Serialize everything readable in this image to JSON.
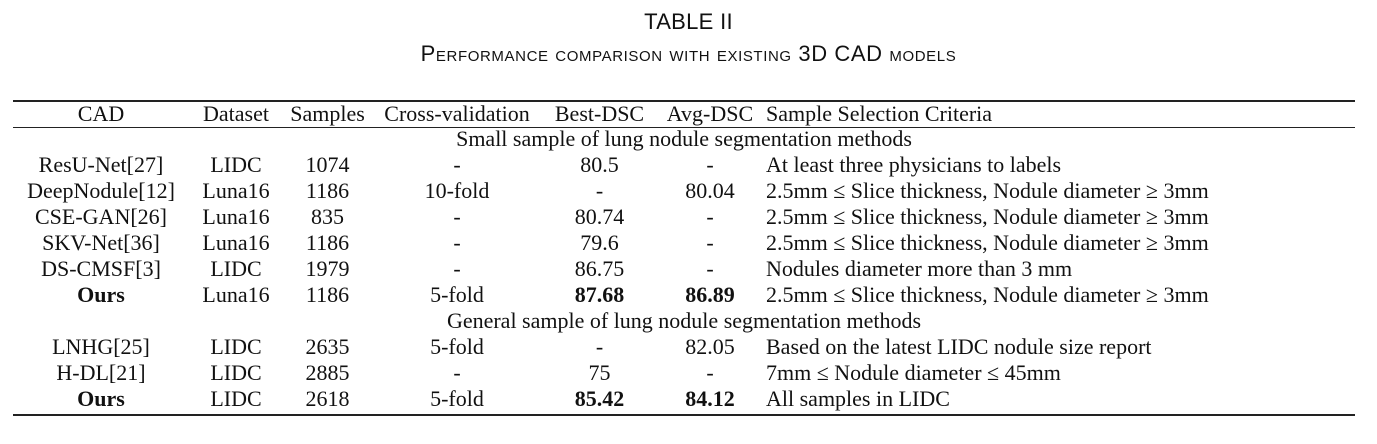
{
  "caption": {
    "label": "TABLE II",
    "title": "Performance comparison with existing 3D CAD models"
  },
  "table": {
    "columns": [
      "CAD",
      "Dataset",
      "Samples",
      "Cross-validation",
      "Best-DSC",
      "Avg-DSC",
      "Sample Selection Criteria"
    ],
    "sections": [
      {
        "title": "Small sample of lung nodule segmentation methods",
        "rows": [
          {
            "cad": "ResU-Net[27]",
            "dataset": "LIDC",
            "samples": "1074",
            "cv": "-",
            "best": "80.5",
            "avg": "-",
            "criteria": "At least three physicians to labels",
            "bold": false
          },
          {
            "cad": "DeepNodule[12]",
            "dataset": "Luna16",
            "samples": "1186",
            "cv": "10-fold",
            "best": "-",
            "avg": "80.04",
            "criteria": "2.5mm ≤ Slice thickness, Nodule diameter ≥ 3mm",
            "bold": false
          },
          {
            "cad": "CSE-GAN[26]",
            "dataset": "Luna16",
            "samples": "835",
            "cv": "-",
            "best": "80.74",
            "avg": "-",
            "criteria": "2.5mm ≤ Slice thickness, Nodule diameter ≥ 3mm",
            "bold": false
          },
          {
            "cad": "SKV-Net[36]",
            "dataset": "Luna16",
            "samples": "1186",
            "cv": "-",
            "best": "79.6",
            "avg": "-",
            "criteria": "2.5mm ≤ Slice thickness, Nodule diameter ≥ 3mm",
            "bold": false
          },
          {
            "cad": "DS-CMSF[3]",
            "dataset": "LIDC",
            "samples": "1979",
            "cv": "-",
            "best": "86.75",
            "avg": "-",
            "criteria": "Nodules diameter more than 3 mm",
            "bold": false
          },
          {
            "cad": "Ours",
            "dataset": "Luna16",
            "samples": "1186",
            "cv": "5-fold",
            "best": "87.68",
            "avg": "86.89",
            "criteria": "2.5mm ≤ Slice thickness, Nodule diameter ≥ 3mm",
            "bold": true
          }
        ]
      },
      {
        "title": "General sample of lung nodule segmentation methods",
        "rows": [
          {
            "cad": "LNHG[25]",
            "dataset": "LIDC",
            "samples": "2635",
            "cv": "5-fold",
            "best": "-",
            "avg": "82.05",
            "criteria": "Based on the latest LIDC nodule size report",
            "bold": false
          },
          {
            "cad": "H-DL[21]",
            "dataset": "LIDC",
            "samples": "2885",
            "cv": "-",
            "best": "75",
            "avg": "-",
            "criteria": "7mm ≤ Nodule diameter ≤ 45mm",
            "bold": false
          },
          {
            "cad": "Ours",
            "dataset": "LIDC",
            "samples": "2618",
            "cv": "5-fold",
            "best": "85.42",
            "avg": "84.12",
            "criteria": "All samples in LIDC",
            "bold": true
          }
        ]
      }
    ]
  }
}
